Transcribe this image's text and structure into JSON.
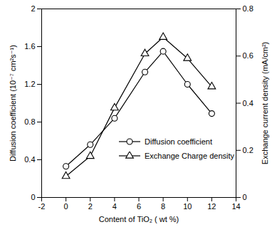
{
  "chart_data": {
    "type": "line",
    "x_label": "Content of TiO₂ ( wt %)",
    "y_label": "Diffusion coefficient (10⁻⁷ cm²s⁻¹)",
    "y2_label": "Exchange current density (mA/cm²)",
    "x": [
      0,
      2,
      4,
      6.5,
      8,
      10,
      12
    ],
    "series": [
      {
        "name": "Diffusion coefficient",
        "color": "#000000",
        "marker": "circle",
        "values": [
          0.33,
          0.56,
          0.84,
          1.33,
          1.55,
          1.2,
          0.89
        ]
      },
      {
        "name": "Exchange Charge density",
        "color": "#000000",
        "marker": "triangle",
        "axis": "y2",
        "values": [
          0.09,
          0.175,
          0.38,
          0.61,
          0.68,
          0.59,
          0.47
        ]
      }
    ],
    "xlim": [
      -2,
      14
    ],
    "xticks": [
      -2,
      0,
      2,
      4,
      6,
      8,
      10,
      12,
      14
    ],
    "ylim": [
      0,
      2
    ],
    "yticks": [
      0,
      0.4,
      0.8,
      1.2,
      1.6,
      2
    ],
    "y2lim": [
      0,
      0.8
    ],
    "y2ticks": [
      0,
      0.2,
      0.4,
      0.6,
      0.8
    ],
    "grid": false,
    "legend": "lower right"
  }
}
